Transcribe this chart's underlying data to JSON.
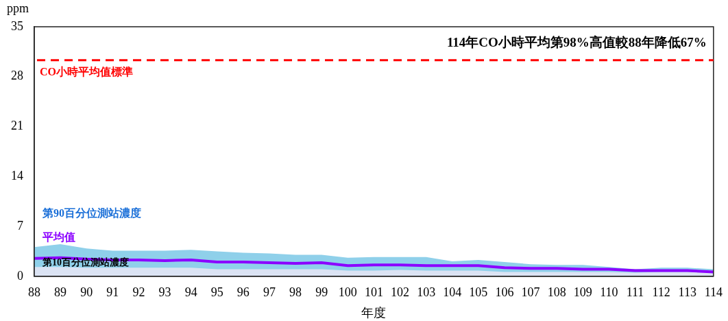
{
  "chart_data": {
    "type": "area",
    "xlabel": "年度",
    "ylabel": "ppm",
    "categories": [
      "88",
      "89",
      "90",
      "91",
      "92",
      "93",
      "94",
      "95",
      "96",
      "97",
      "98",
      "99",
      "100",
      "101",
      "102",
      "103",
      "104",
      "105",
      "106",
      "107",
      "108",
      "109",
      "110",
      "111",
      "112",
      "113",
      "114"
    ],
    "series": [
      {
        "name": "第90百分位測站濃度",
        "color": "#8fd0ea",
        "values": [
          4.1,
          4.5,
          3.9,
          3.6,
          3.6,
          3.6,
          3.7,
          3.5,
          3.3,
          3.2,
          3.0,
          3.0,
          2.6,
          2.7,
          2.7,
          2.7,
          2.1,
          2.3,
          2.0,
          1.7,
          1.6,
          1.6,
          1.3,
          1.0,
          1.2,
          1.2,
          1.0
        ]
      },
      {
        "name": "第10百分位測站濃度",
        "color": "#dbe3f3",
        "values": [
          1.3,
          1.3,
          1.2,
          1.2,
          1.2,
          1.2,
          1.2,
          1.0,
          1.0,
          1.0,
          1.0,
          1.0,
          0.8,
          0.8,
          0.9,
          0.8,
          0.8,
          0.8,
          0.6,
          0.6,
          0.6,
          0.6,
          0.6,
          0.5,
          0.6,
          0.6,
          0.6
        ]
      },
      {
        "name": "平均值",
        "type": "line",
        "color": "#8b00ff",
        "values": [
          2.5,
          2.6,
          2.4,
          2.3,
          2.3,
          2.2,
          2.3,
          2.0,
          2.0,
          1.9,
          1.8,
          1.9,
          1.5,
          1.6,
          1.6,
          1.5,
          1.5,
          1.5,
          1.2,
          1.1,
          1.1,
          1.0,
          1.0,
          0.8,
          0.8,
          0.8,
          0.6
        ]
      }
    ],
    "ylim": [
      0,
      35
    ],
    "yticks": [
      0,
      7,
      14,
      21,
      28,
      35
    ],
    "grid": false,
    "legend": false,
    "marker": "none",
    "ref_lines": [
      {
        "axis": "y",
        "value": 30.3,
        "label": "CO小時平均值標準",
        "color": "#ff0000",
        "line_style": "dashed"
      }
    ],
    "annotations": [
      "114年CO小時平均第98%高值較88年降低67%"
    ]
  }
}
